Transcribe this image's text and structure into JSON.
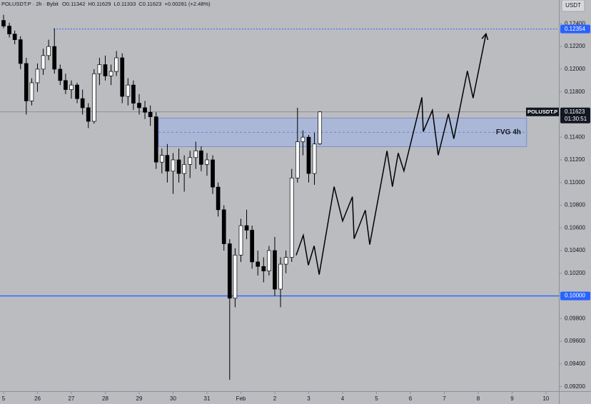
{
  "chart_data": {
    "type": "candlestick",
    "header": {
      "symbol": "POLUSDT.P · 2h · Bybit",
      "open": "O0.11342",
      "high": "H0.11629",
      "low": "L0.11333",
      "close": "C0.11623",
      "change": "+0.00281 (+2.48%)"
    },
    "currency": "USDT",
    "x": [
      0,
      0.17,
      0.33,
      0.5,
      0.67,
      0.83,
      1,
      1.17,
      1.33,
      1.5,
      1.67,
      1.83,
      2,
      2.17,
      2.33,
      2.5,
      2.67,
      2.83,
      3,
      3.17,
      3.33,
      3.5,
      3.67,
      3.83,
      4,
      4.17,
      4.33,
      4.5,
      4.67,
      4.83,
      5,
      5.17,
      5.33,
      5.5,
      5.67,
      5.83,
      6,
      6.17,
      6.33,
      6.5,
      6.67,
      6.83,
      7,
      7.17,
      7.33,
      7.5,
      7.67,
      7.83,
      8,
      8.17,
      8.33,
      8.5,
      8.67,
      8.83,
      9,
      9.17,
      9.33
    ],
    "open": [
      0.1243,
      0.1238,
      0.1231,
      0.1226,
      0.1205,
      0.1172,
      0.1188,
      0.12,
      0.1212,
      0.122,
      0.12,
      0.119,
      0.1182,
      0.1186,
      0.1174,
      0.1166,
      0.1154,
      0.1196,
      0.1204,
      0.1194,
      0.1198,
      0.121,
      0.1176,
      0.1186,
      0.117,
      0.1166,
      0.1162,
      0.1158,
      0.1118,
      0.1124,
      0.111,
      0.112,
      0.1108,
      0.1116,
      0.1122,
      0.1128,
      0.1116,
      0.112,
      0.1096,
      0.1076,
      0.1046,
      0.0998,
      0.1036,
      0.1062,
      0.1058,
      0.103,
      0.1026,
      0.1022,
      0.104,
      0.1006,
      0.1028,
      0.1034,
      0.1104,
      0.1136,
      0.114,
      0.1108,
      0.11342
    ],
    "high": [
      0.1248,
      0.1241,
      0.1234,
      0.1229,
      0.121,
      0.1192,
      0.1205,
      0.1218,
      0.1226,
      0.1236,
      0.1204,
      0.1196,
      0.119,
      0.1188,
      0.1182,
      0.117,
      0.12,
      0.121,
      0.1212,
      0.1204,
      0.1216,
      0.1214,
      0.1192,
      0.119,
      0.1178,
      0.1172,
      0.1168,
      0.1162,
      0.113,
      0.1134,
      0.1126,
      0.113,
      0.1124,
      0.1128,
      0.1136,
      0.1132,
      0.1126,
      0.1124,
      0.11,
      0.108,
      0.105,
      0.1042,
      0.1068,
      0.1076,
      0.1062,
      0.104,
      0.1034,
      0.1044,
      0.1052,
      0.1034,
      0.104,
      0.1112,
      0.1166,
      0.1146,
      0.1142,
      0.1144,
      0.11629
    ],
    "low": [
      0.1236,
      0.1228,
      0.1222,
      0.12,
      0.116,
      0.1168,
      0.118,
      0.1195,
      0.1208,
      0.1196,
      0.1186,
      0.1178,
      0.1174,
      0.117,
      0.116,
      0.1148,
      0.1152,
      0.1186,
      0.119,
      0.1186,
      0.1194,
      0.117,
      0.1168,
      0.1164,
      0.116,
      0.1156,
      0.115,
      0.1112,
      0.1108,
      0.11,
      0.109,
      0.11,
      0.1092,
      0.1104,
      0.1112,
      0.111,
      0.1106,
      0.109,
      0.107,
      0.104,
      0.0926,
      0.099,
      0.103,
      0.105,
      0.1024,
      0.1018,
      0.1012,
      0.1018,
      0.1,
      0.099,
      0.102,
      0.103,
      0.11,
      0.1124,
      0.11,
      0.1098,
      0.11333
    ],
    "close": [
      0.1238,
      0.1231,
      0.1226,
      0.1205,
      0.1172,
      0.1188,
      0.12,
      0.1212,
      0.122,
      0.12,
      0.119,
      0.1182,
      0.1186,
      0.1174,
      0.1166,
      0.1154,
      0.1196,
      0.1204,
      0.1194,
      0.1198,
      0.121,
      0.1176,
      0.1186,
      0.117,
      0.1166,
      0.1162,
      0.1158,
      0.1118,
      0.1124,
      0.111,
      0.112,
      0.1108,
      0.1116,
      0.1122,
      0.1128,
      0.1116,
      0.112,
      0.1096,
      0.1076,
      0.1046,
      0.0998,
      0.1036,
      0.1062,
      0.1058,
      0.103,
      0.1026,
      0.1022,
      0.104,
      0.1006,
      0.1028,
      0.1034,
      0.1104,
      0.1136,
      0.114,
      0.1108,
      0.1134,
      0.11623
    ],
    "up_color": "#ffffff",
    "down_color": "#000000",
    "wick_color": "#000000",
    "xlim": [
      -0.105,
      16.38
    ],
    "ylim": [
      0.0916,
      0.1261
    ],
    "xticks": [
      {
        "value": 0,
        "label": "5"
      },
      {
        "value": 1,
        "label": "26"
      },
      {
        "value": 2,
        "label": "27"
      },
      {
        "value": 3,
        "label": "28"
      },
      {
        "value": 4,
        "label": "29"
      },
      {
        "value": 5,
        "label": "30"
      },
      {
        "value": 6,
        "label": "31"
      },
      {
        "value": 7,
        "label": "Feb"
      },
      {
        "value": 8,
        "label": "2"
      },
      {
        "value": 9,
        "label": "3"
      },
      {
        "value": 10,
        "label": "4"
      },
      {
        "value": 11,
        "label": "5"
      },
      {
        "value": 12,
        "label": "6"
      },
      {
        "value": 13,
        "label": "7"
      },
      {
        "value": 14,
        "label": "8"
      },
      {
        "value": 15,
        "label": "9"
      },
      {
        "value": 16,
        "label": "10"
      }
    ],
    "yticks": [
      {
        "value": 0.092,
        "label": "0.09200"
      },
      {
        "value": 0.094,
        "label": "0.09400"
      },
      {
        "value": 0.096,
        "label": "0.09600"
      },
      {
        "value": 0.098,
        "label": "0.09800"
      },
      {
        "value": 0.1,
        "label": "0.10000"
      },
      {
        "value": 0.102,
        "label": "0.10200"
      },
      {
        "value": 0.104,
        "label": "0.10400"
      },
      {
        "value": 0.106,
        "label": "0.10600"
      },
      {
        "value": 0.108,
        "label": "0.10800"
      },
      {
        "value": 0.11,
        "label": "0.11000"
      },
      {
        "value": 0.112,
        "label": "0.11200"
      },
      {
        "value": 0.114,
        "label": "0.11400"
      },
      {
        "value": 0.116,
        "label": "0.11600"
      },
      {
        "value": 0.118,
        "label": "0.11800"
      },
      {
        "value": 0.12,
        "label": "0.12000"
      },
      {
        "value": 0.122,
        "label": "0.12200"
      },
      {
        "value": 0.124,
        "label": "0.12400"
      }
    ],
    "lines": [
      {
        "value": 0.12354,
        "label": "0.12354",
        "color": "#2962ff",
        "style": "dashed",
        "x_start": 1.47
      },
      {
        "value": 0.1,
        "label": "0.10000",
        "color": "#2962ff",
        "style": "solid"
      }
    ],
    "last_price": {
      "value": 0.11623,
      "label": "0.11623",
      "symbol": "POLUSDT.P",
      "countdown": "01:30:51",
      "color": "#7d8088"
    },
    "zone": {
      "label": "FVG 4h",
      "x": [
        4.57,
        15.43
      ],
      "y": [
        0.11317,
        0.11569
      ],
      "mid": 0.11443,
      "color": "#9fb3ea"
    },
    "projection": {
      "x": [
        8.63,
        8.84,
        8.99,
        9.16,
        9.31,
        9.75,
        10,
        10.29,
        10.34,
        10.67,
        10.8,
        11.31,
        11.47,
        11.64,
        11.81,
        12.34,
        12.38,
        12.65,
        12.82,
        13.12,
        13.28,
        13.68,
        13.85,
        14.23
      ],
      "y": [
        0.10359,
        0.10535,
        0.10271,
        0.10441,
        0.10189,
        0.10964,
        0.10661,
        0.10875,
        0.10504,
        0.10756,
        0.10453,
        0.11279,
        0.10964,
        0.1126,
        0.11102,
        0.11751,
        0.11449,
        0.11638,
        0.11241,
        0.11606,
        0.11386,
        0.11984,
        0.11745,
        0.12312
      ],
      "color": "#000000"
    }
  }
}
